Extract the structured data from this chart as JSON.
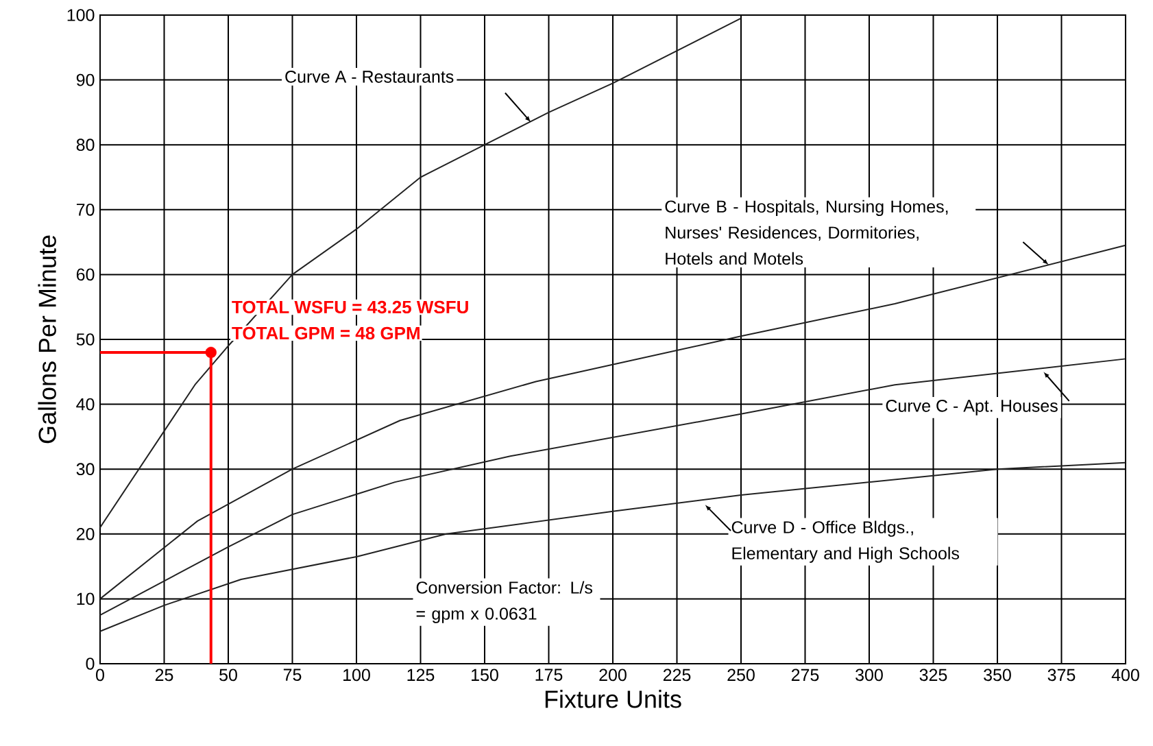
{
  "chart_data": {
    "type": "line",
    "xlabel": "Fixture Units",
    "ylabel": "Gallons Per Minute",
    "xlim": [
      0,
      400
    ],
    "ylim": [
      0,
      100
    ],
    "xticks": [
      0,
      25,
      50,
      75,
      100,
      125,
      150,
      175,
      200,
      225,
      250,
      275,
      300,
      325,
      350,
      375,
      400
    ],
    "yticks": [
      0,
      10,
      20,
      30,
      40,
      50,
      60,
      70,
      80,
      90,
      100
    ],
    "grid": true,
    "series": [
      {
        "color": "#222222",
        "x": [
          0,
          37,
          50,
          75,
          100,
          125,
          150,
          175,
          200,
          250
        ],
        "values": [
          21,
          43,
          49,
          60,
          67,
          75,
          80,
          85,
          89.5,
          99.5
        ]
      },
      {
        "color": "#222222",
        "x": [
          0,
          38,
          75,
          117,
          170,
          250,
          310,
          400
        ],
        "values": [
          10,
          22,
          30,
          37.5,
          43.5,
          50.5,
          55.5,
          64.5
        ]
      },
      {
        "color": "#222222",
        "x": [
          0,
          50,
          75,
          115,
          160,
          250,
          310,
          400
        ],
        "values": [
          7.5,
          18,
          23,
          28,
          32,
          38.5,
          43,
          47
        ]
      },
      {
        "color": "#222222",
        "x": [
          0,
          25,
          55,
          100,
          135,
          200,
          250,
          350,
          400
        ],
        "values": [
          5,
          9,
          13,
          16.5,
          20,
          23.5,
          26,
          30,
          31
        ]
      },
      {
        "name": "TOTAL WSFU = 43.25 WSFU",
        "color": "#ff0000",
        "x": [
          43.25,
          43.25
        ],
        "values": [
          0,
          48
        ]
      },
      {
        "name": "TOTAL GPM = 48 GPM",
        "color": "#ff0000",
        "x": [
          0,
          43.25
        ],
        "values": [
          48,
          48
        ]
      },
      {
        "type": "scatter",
        "color": "#ff0000",
        "x": [
          43.25
        ],
        "values": [
          48
        ]
      }
    ],
    "annotations": [
      "Curve A - Restaurants",
      "Curve B - Hospitals, Nursing Homes, Nurses' Residences, Dormitories, Hotels and Motels",
      "Curve C - Apt. Houses",
      "Curve D - Office Bldgs., Elementary and High Schools",
      "Conversion Factor: L/s = gpm x 0.0631"
    ]
  }
}
